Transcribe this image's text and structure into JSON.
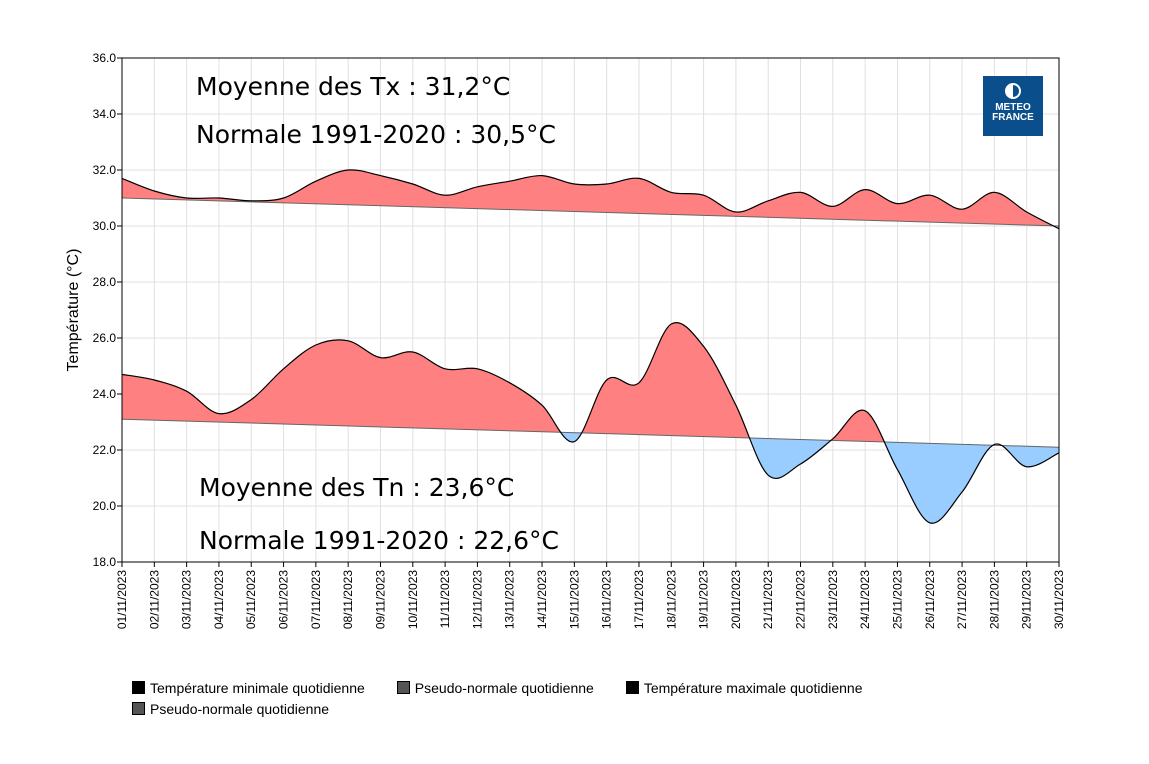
{
  "chart_data": {
    "type": "area",
    "ylabel": "Température (°C)",
    "ylim": [
      18,
      36
    ],
    "yticks": [
      "18.0",
      "20.0",
      "22.0",
      "24.0",
      "26.0",
      "28.0",
      "30.0",
      "32.0",
      "34.0",
      "36.0"
    ],
    "grid": true,
    "x": [
      "01/11/2023",
      "02/11/2023",
      "03/11/2023",
      "04/11/2023",
      "05/11/2023",
      "06/11/2023",
      "07/11/2023",
      "08/11/2023",
      "09/11/2023",
      "10/11/2023",
      "11/11/2023",
      "12/11/2023",
      "13/11/2023",
      "14/11/2023",
      "15/11/2023",
      "16/11/2023",
      "17/11/2023",
      "18/11/2023",
      "19/11/2023",
      "20/11/2023",
      "21/11/2023",
      "22/11/2023",
      "23/11/2023",
      "24/11/2023",
      "25/11/2023",
      "26/11/2023",
      "27/11/2023",
      "28/11/2023",
      "29/11/2023",
      "30/11/2023"
    ],
    "series": [
      {
        "name": "Température maximale quotidienne",
        "values": [
          31.7,
          31.25,
          31.0,
          31.0,
          30.9,
          31.0,
          31.6,
          32.0,
          31.8,
          31.5,
          31.1,
          31.4,
          31.6,
          31.8,
          31.5,
          31.5,
          31.7,
          31.2,
          31.1,
          30.5,
          30.9,
          31.2,
          30.7,
          31.3,
          30.8,
          31.1,
          30.6,
          31.2,
          30.5,
          29.9
        ]
      },
      {
        "name": "Pseudo-normale quotidienne",
        "kind": "tx_normal",
        "start": 31.0,
        "end": 30.0
      },
      {
        "name": "Température minimale quotidienne",
        "values": [
          24.7,
          24.5,
          24.1,
          23.3,
          23.8,
          24.9,
          25.75,
          25.9,
          25.3,
          25.5,
          24.9,
          24.9,
          24.4,
          23.6,
          22.3,
          24.5,
          24.4,
          26.5,
          25.7,
          23.6,
          21.1,
          21.5,
          22.4,
          23.4,
          21.3,
          19.4,
          20.5,
          22.2,
          21.4,
          21.9
        ]
      },
      {
        "name": "Pseudo-normale quotidienne",
        "kind": "tn_normal",
        "start": 23.1,
        "end": 22.1
      }
    ],
    "colors": {
      "above": "#ff8080",
      "below": "#99ccff",
      "line": "#000000",
      "normal": "#666666"
    },
    "annotations": {
      "tx_mean": "Moyenne des Tx : 31,2°C",
      "tx_normal": "Normale 1991-2020 : 30,5°C",
      "tn_mean": "Moyenne des Tn : 23,6°C",
      "tn_normal": "Normale 1991-2020 : 22,6°C"
    },
    "annotation_colors": {
      "tx_mean": "#ff0000",
      "tx_normal": "#ff6600",
      "tn_mean": "#0a4f8c",
      "tn_normal": "#1e90ff"
    },
    "legend": [
      "Température minimale quotidienne",
      "Pseudo-normale quotidienne",
      "Température maximale quotidienne",
      "Pseudo-normale quotidienne"
    ],
    "legend_colors": [
      "#000000",
      "#555555",
      "#000000",
      "#555555"
    ],
    "legend_placement": "bottom"
  },
  "logo": {
    "line1": "METEO",
    "line2": "FRANCE"
  }
}
